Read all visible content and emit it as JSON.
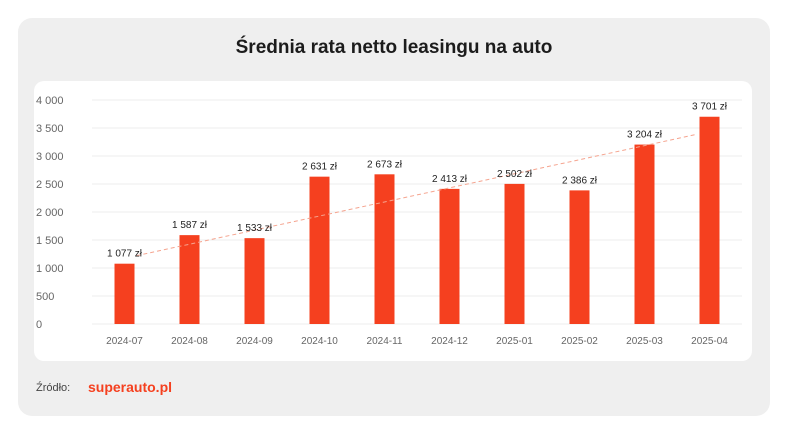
{
  "colors": {
    "bar": "#f5401f",
    "trend": "#f5a48f",
    "grid": "#ececec",
    "tick_text": "#666666",
    "label_text": "#222222",
    "brand": "#f5401f"
  },
  "source": {
    "label": "Źródło:",
    "brand": "superauto.pl"
  },
  "chart_data": {
    "type": "bar",
    "title": "Średnia rata netto leasingu na auto",
    "xlabel": "",
    "ylabel": "",
    "categories": [
      "2024-07",
      "2024-08",
      "2024-09",
      "2024-10",
      "2024-11",
      "2024-12",
      "2025-01",
      "2025-02",
      "2025-03",
      "2025-04"
    ],
    "values": [
      1077,
      1587,
      1533,
      2631,
      2673,
      2413,
      2502,
      2386,
      3204,
      3701
    ],
    "value_labels": [
      "1 077 zł",
      "1 587 zł",
      "1 533 zł",
      "2 631 zł",
      "2 673 zł",
      "2 413 zł",
      "2 502 zł",
      "2 386 zł",
      "3 204 zł",
      "3 701 zł"
    ],
    "ylim": [
      0,
      4000
    ],
    "yticks": [
      0,
      500,
      1000,
      1500,
      2000,
      2500,
      3000,
      3500,
      4000
    ],
    "ytick_labels": [
      "0",
      "500",
      "1 000",
      "1 500",
      "2 000",
      "2 500",
      "3 000",
      "3 500",
      "4 000"
    ],
    "grid": true,
    "trendline": {
      "style": "dashed",
      "start": 1220,
      "end": 3390
    }
  }
}
